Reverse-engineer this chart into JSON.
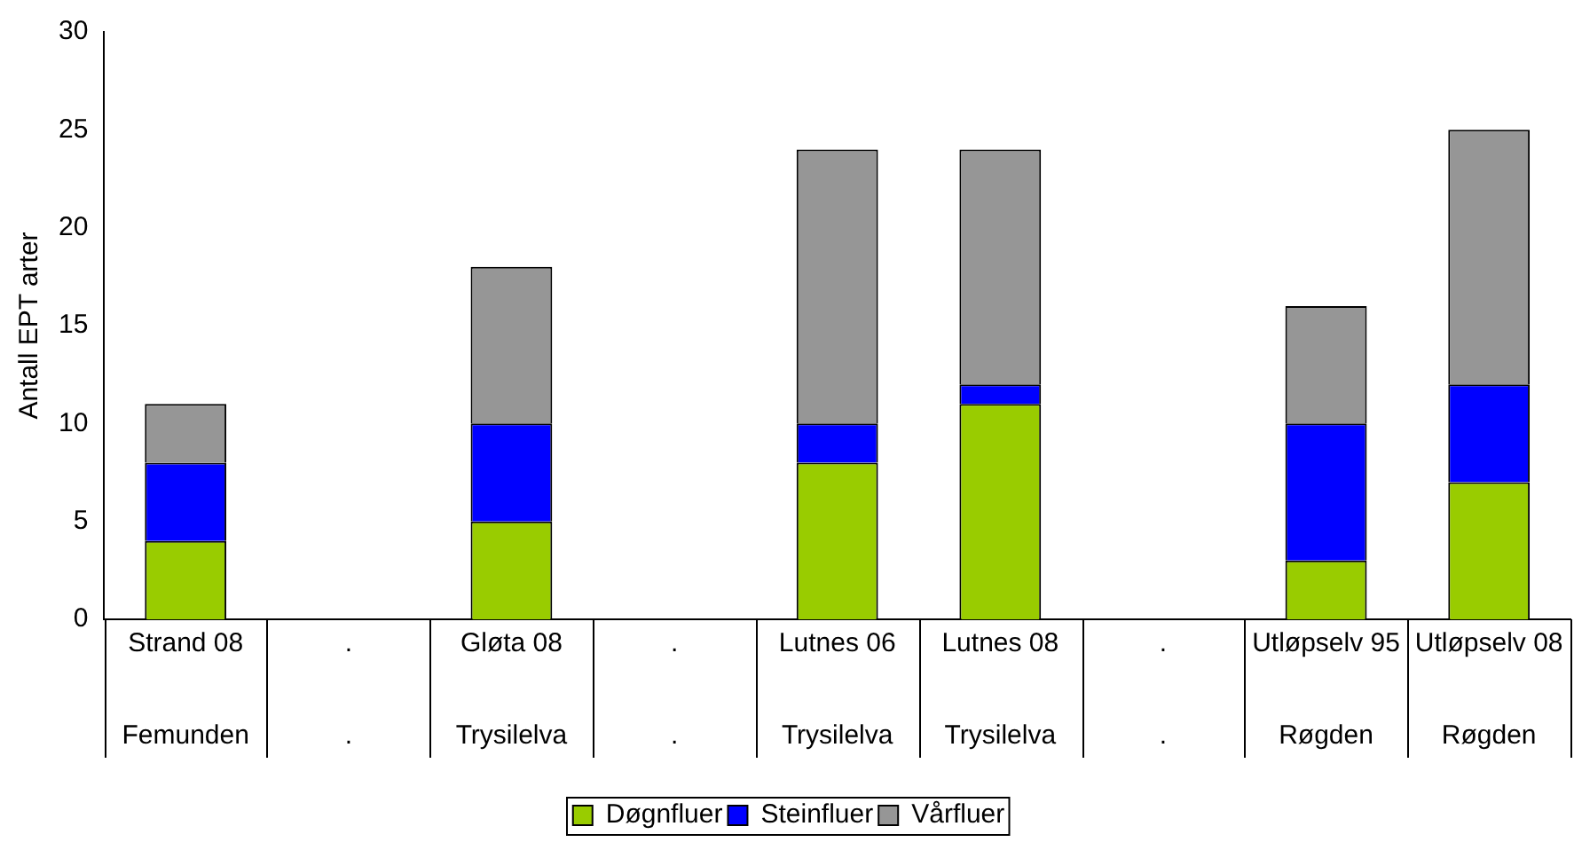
{
  "chart_data": {
    "type": "bar",
    "stacked": true,
    "ylabel": "Antall EPT arter",
    "categories": [
      "Strand 08\nFemunden",
      ".\n.",
      "Gløta 08\nTrysilelva",
      ".\n.",
      "Lutnes 06\nTrysilelva",
      "Lutnes 08\nTrysilelva",
      ".\n.",
      "Utløpselv 95\nRøgden",
      "Utløpselv 08\nRøgden"
    ],
    "series": [
      {
        "name": "Døgnfluer",
        "color": "#99cc00",
        "values": [
          4,
          null,
          5,
          null,
          8,
          11,
          null,
          3,
          7
        ]
      },
      {
        "name": "Steinfluer",
        "color": "#0000ff",
        "values": [
          4,
          null,
          5,
          null,
          2,
          1,
          null,
          7,
          5
        ]
      },
      {
        "name": "Vårfluer",
        "color": "#969696",
        "values": [
          3,
          null,
          8,
          null,
          14,
          12,
          null,
          6,
          13
        ]
      }
    ],
    "ylim": [
      0,
      30
    ],
    "yticks": [
      0,
      5,
      10,
      15,
      20,
      25,
      30
    ],
    "grid": false,
    "legend": "bottom"
  }
}
